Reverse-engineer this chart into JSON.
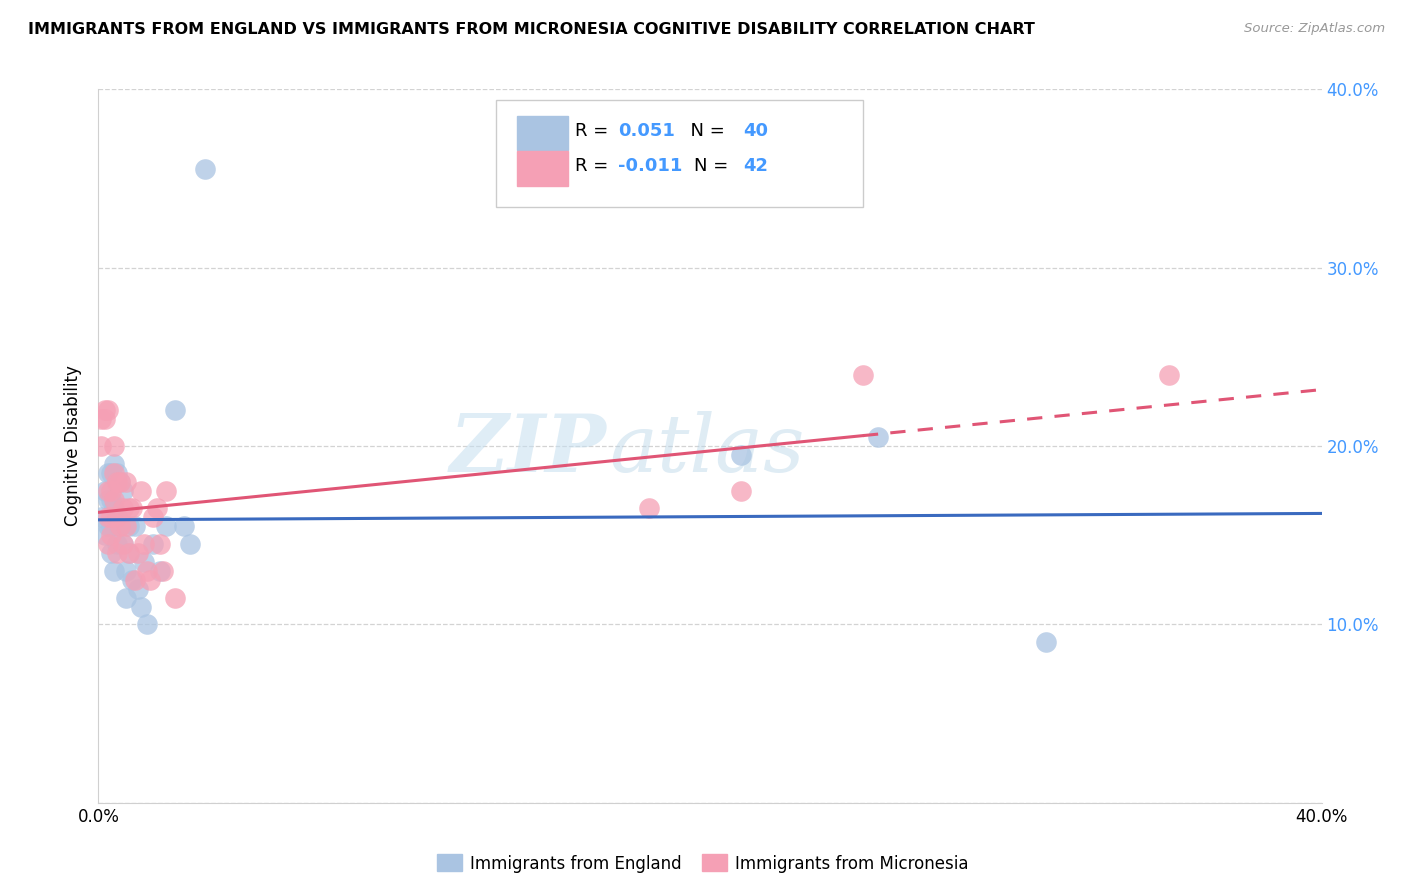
{
  "title": "IMMIGRANTS FROM ENGLAND VS IMMIGRANTS FROM MICRONESIA COGNITIVE DISABILITY CORRELATION CHART",
  "source": "Source: ZipAtlas.com",
  "ylabel": "Cognitive Disability",
  "england_R": 0.051,
  "england_N": 40,
  "micronesia_R": -0.011,
  "micronesia_N": 42,
  "england_color": "#aac4e2",
  "micronesia_color": "#f5a0b5",
  "england_line_color": "#3a6abf",
  "micronesia_line_color": "#e05575",
  "watermark_zip": "ZIP",
  "watermark_atlas": "atlas",
  "xlim": [
    0.0,
    0.4
  ],
  "ylim": [
    0.0,
    0.4
  ],
  "right_yticks": [
    0.0,
    0.1,
    0.2,
    0.3,
    0.4
  ],
  "right_yticklabels": [
    "",
    "10.0%",
    "20.0%",
    "30.0%",
    "40.0%"
  ],
  "england_x": [
    0.001,
    0.002,
    0.002,
    0.003,
    0.003,
    0.003,
    0.004,
    0.004,
    0.004,
    0.004,
    0.005,
    0.005,
    0.005,
    0.006,
    0.006,
    0.006,
    0.007,
    0.007,
    0.008,
    0.008,
    0.009,
    0.009,
    0.01,
    0.01,
    0.011,
    0.012,
    0.013,
    0.014,
    0.015,
    0.016,
    0.018,
    0.02,
    0.022,
    0.025,
    0.028,
    0.03,
    0.035,
    0.21,
    0.255,
    0.31
  ],
  "england_y": [
    0.16,
    0.175,
    0.15,
    0.185,
    0.17,
    0.155,
    0.185,
    0.17,
    0.155,
    0.14,
    0.165,
    0.19,
    0.13,
    0.185,
    0.16,
    0.145,
    0.18,
    0.155,
    0.175,
    0.145,
    0.13,
    0.115,
    0.155,
    0.14,
    0.125,
    0.155,
    0.12,
    0.11,
    0.135,
    0.1,
    0.145,
    0.13,
    0.155,
    0.22,
    0.155,
    0.145,
    0.355,
    0.195,
    0.205,
    0.09
  ],
  "micronesia_x": [
    0.001,
    0.001,
    0.002,
    0.002,
    0.003,
    0.003,
    0.003,
    0.003,
    0.004,
    0.004,
    0.004,
    0.005,
    0.005,
    0.005,
    0.006,
    0.006,
    0.006,
    0.007,
    0.007,
    0.008,
    0.008,
    0.009,
    0.009,
    0.01,
    0.01,
    0.011,
    0.012,
    0.013,
    0.014,
    0.015,
    0.016,
    0.017,
    0.018,
    0.019,
    0.02,
    0.021,
    0.022,
    0.025,
    0.18,
    0.21,
    0.25,
    0.35
  ],
  "micronesia_y": [
    0.2,
    0.215,
    0.22,
    0.215,
    0.175,
    0.16,
    0.145,
    0.22,
    0.175,
    0.16,
    0.15,
    0.185,
    0.17,
    0.2,
    0.18,
    0.16,
    0.14,
    0.18,
    0.155,
    0.165,
    0.145,
    0.18,
    0.155,
    0.165,
    0.14,
    0.165,
    0.125,
    0.14,
    0.175,
    0.145,
    0.13,
    0.125,
    0.16,
    0.165,
    0.145,
    0.13,
    0.175,
    0.115,
    0.165,
    0.175,
    0.24,
    0.24
  ]
}
